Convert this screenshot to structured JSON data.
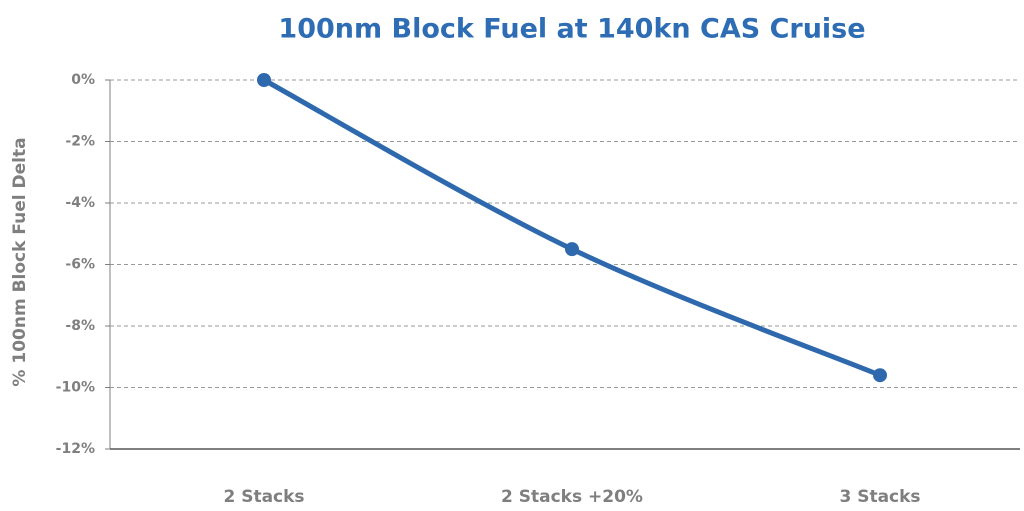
{
  "chart_data": {
    "type": "line",
    "title": "100nm Block Fuel at 140kn CAS Cruise",
    "y_label": "% 100nm Block Fuel Delta",
    "categories": [
      "2 Stacks",
      "2 Stacks +20%",
      "3 Stacks"
    ],
    "series": [
      {
        "name": "Block Fuel Delta",
        "color": "#2f69ad",
        "values": [
          0,
          -5.5,
          -9.6
        ]
      }
    ],
    "ylim": [
      -12,
      0
    ],
    "yticks": [
      {
        "value": 0,
        "label": "0%"
      },
      {
        "value": -2,
        "label": "-2%"
      },
      {
        "value": -4,
        "label": "-4%"
      },
      {
        "value": -6,
        "label": "-6%"
      },
      {
        "value": -8,
        "label": "-8%"
      },
      {
        "value": -10,
        "label": "-10%"
      },
      {
        "value": -12,
        "label": "-12%"
      }
    ],
    "grid": true
  }
}
